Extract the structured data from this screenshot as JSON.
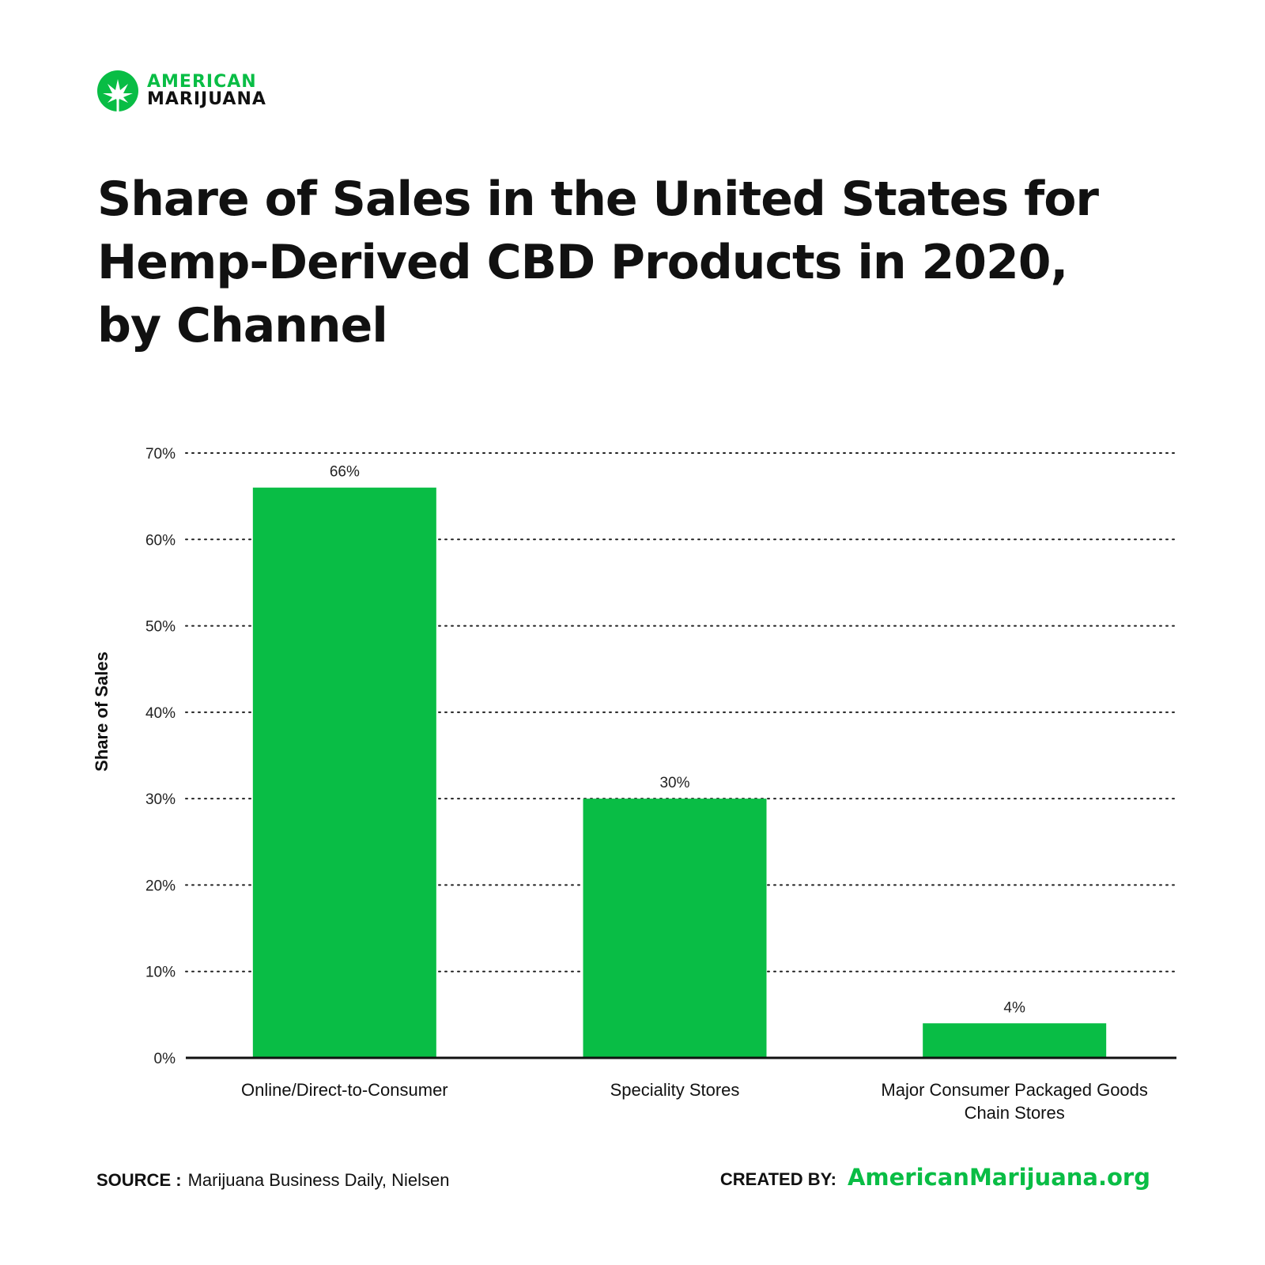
{
  "brand": {
    "line1": "AMERICAN",
    "line2": "MARIJUANA",
    "logo_icon": "cannabis-leaf-icon",
    "accent_color": "#09bd45"
  },
  "chart_data": {
    "type": "bar",
    "title": "Share of Sales in the United States for Hemp-Derived CBD Products in 2020, by Channel",
    "ylabel": "Share of Sales",
    "xlabel": "",
    "categories": [
      [
        "Online/Direct-to-Consumer"
      ],
      [
        "Speciality Stores"
      ],
      [
        "Major Consumer Packaged Goods",
        "Chain Stores"
      ]
    ],
    "values": [
      66,
      30,
      4
    ],
    "value_labels": [
      "66%",
      "30%",
      "4%"
    ],
    "ylim": [
      0,
      70
    ],
    "yticks": [
      0,
      10,
      20,
      30,
      40,
      50,
      60,
      70
    ],
    "ytick_labels": [
      "0%",
      "10%",
      "20%",
      "30%",
      "40%",
      "50%",
      "60%",
      "70%"
    ],
    "grid": true,
    "bar_color": "#09bd45"
  },
  "footer": {
    "source_label": "SOURCE :",
    "source_text": "Marijuana Business Daily, Nielsen",
    "created_label": "CREATED BY:",
    "created_site": "AmericanMarijuana.org"
  }
}
